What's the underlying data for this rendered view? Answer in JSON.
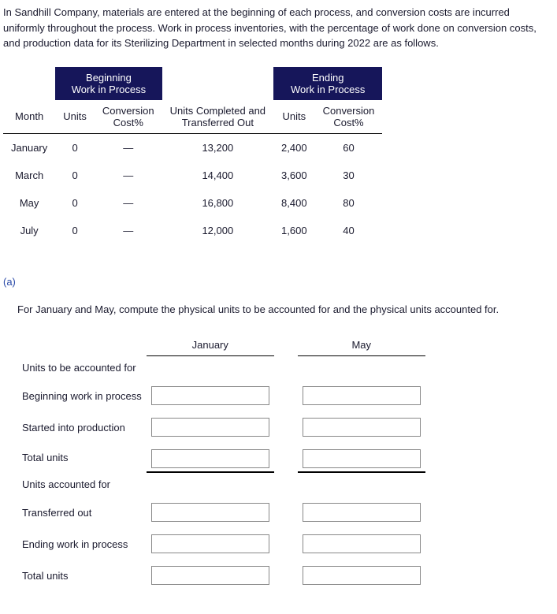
{
  "intro": "In Sandhill Company, materials are entered at the beginning of each process, and conversion costs are incurred uniformly throughout the process. Work in process inventories, with the percentage of work done on conversion costs, and production data for its Sterilizing Department in selected months during 2022 are as follows.",
  "groupHeaders": {
    "beginning": "Beginning\nWork in Process",
    "ending": "Ending\nWork in Process"
  },
  "colHeaders": {
    "month": "Month",
    "units1": "Units",
    "conv1": "Conversion\nCost%",
    "completed": "Units Completed and\nTransferred Out",
    "units2": "Units",
    "conv2": "Conversion\nCost%"
  },
  "rows": [
    {
      "month": "January",
      "u1": "0",
      "c1": "—",
      "comp": "13,200",
      "u2": "2,400",
      "c2": "60"
    },
    {
      "month": "March",
      "u1": "0",
      "c1": "—",
      "comp": "14,400",
      "u2": "3,600",
      "c2": "30"
    },
    {
      "month": "May",
      "u1": "0",
      "c1": "—",
      "comp": "16,800",
      "u2": "8,400",
      "c2": "80"
    },
    {
      "month": "July",
      "u1": "0",
      "c1": "—",
      "comp": "12,000",
      "u2": "1,600",
      "c2": "40"
    }
  ],
  "part": "(a)",
  "instruction": "For January and May, compute the physical units to be accounted for and the physical units accounted for.",
  "monthHeaders": {
    "jan": "January",
    "may": "May"
  },
  "labels": {
    "toBe": "Units to be accounted for",
    "bwip": "Beginning work in process",
    "started": "Started into production",
    "totalUnits": "Total units",
    "acctFor": "Units accounted for",
    "transOut": "Transferred out",
    "ewip": "Ending work in process",
    "totalUnits2": "Total units"
  }
}
